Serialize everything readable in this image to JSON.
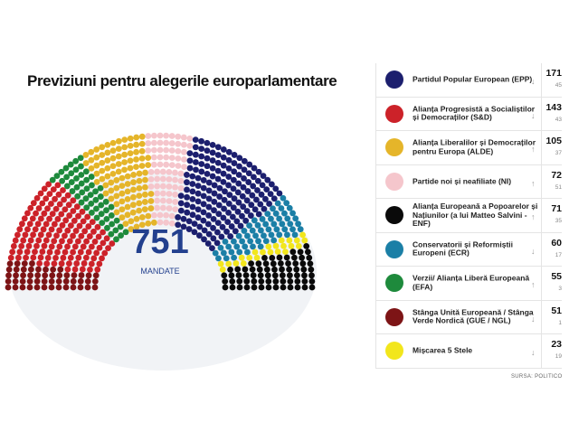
{
  "chart_data": {
    "type": "parliament",
    "title": "Previziuni pentru alegerile europarlamentare",
    "total": 751,
    "total_label": "MANDATE",
    "source": "SURSA: POLITICO",
    "series": [
      {
        "name": "Partidul Popular European (EPP)",
        "color": "#1c1f6e",
        "values": [
          171
        ],
        "change": 45,
        "trend": "down"
      },
      {
        "name": "Alianța Progresistă a Socialiștilor și Democraților (S&D)",
        "color": "#cc2229",
        "values": [
          143
        ],
        "change": 43,
        "trend": "down"
      },
      {
        "name": "Alianța Liberalilor și Democraților pentru Europa (ALDE)",
        "color": "#e5b52a",
        "values": [
          105
        ],
        "change": 37,
        "trend": "up"
      },
      {
        "name": "Partide noi și neafiliate (NI)",
        "color": "#f5c6cc",
        "values": [
          72
        ],
        "change": 51,
        "trend": "up"
      },
      {
        "name": "Alianța Europeană a Popoarelor și Națiunilor (a lui Matteo Salvini - ENF)",
        "color": "#0a0a0a",
        "values": [
          71
        ],
        "change": 35,
        "trend": "up"
      },
      {
        "name": "Conservatorii și Reformiștii Europeni (ECR)",
        "color": "#1b7fa6",
        "values": [
          60
        ],
        "change": 17,
        "trend": "down"
      },
      {
        "name": "Verzii/ Alianța Liberă Europeană (EFA)",
        "color": "#1e8a3c",
        "values": [
          55
        ],
        "change": 3,
        "trend": "up"
      },
      {
        "name": "Stânga Unită Europeană / Stânga Verde Nordică (GUE / NGL)",
        "color": "#7d1416",
        "values": [
          51
        ],
        "change": 1,
        "trend": "down"
      },
      {
        "name": "Mișcarea 5 Stele",
        "color": "#f2e61c",
        "values": [
          23
        ],
        "change": 19,
        "trend": "down"
      }
    ]
  }
}
